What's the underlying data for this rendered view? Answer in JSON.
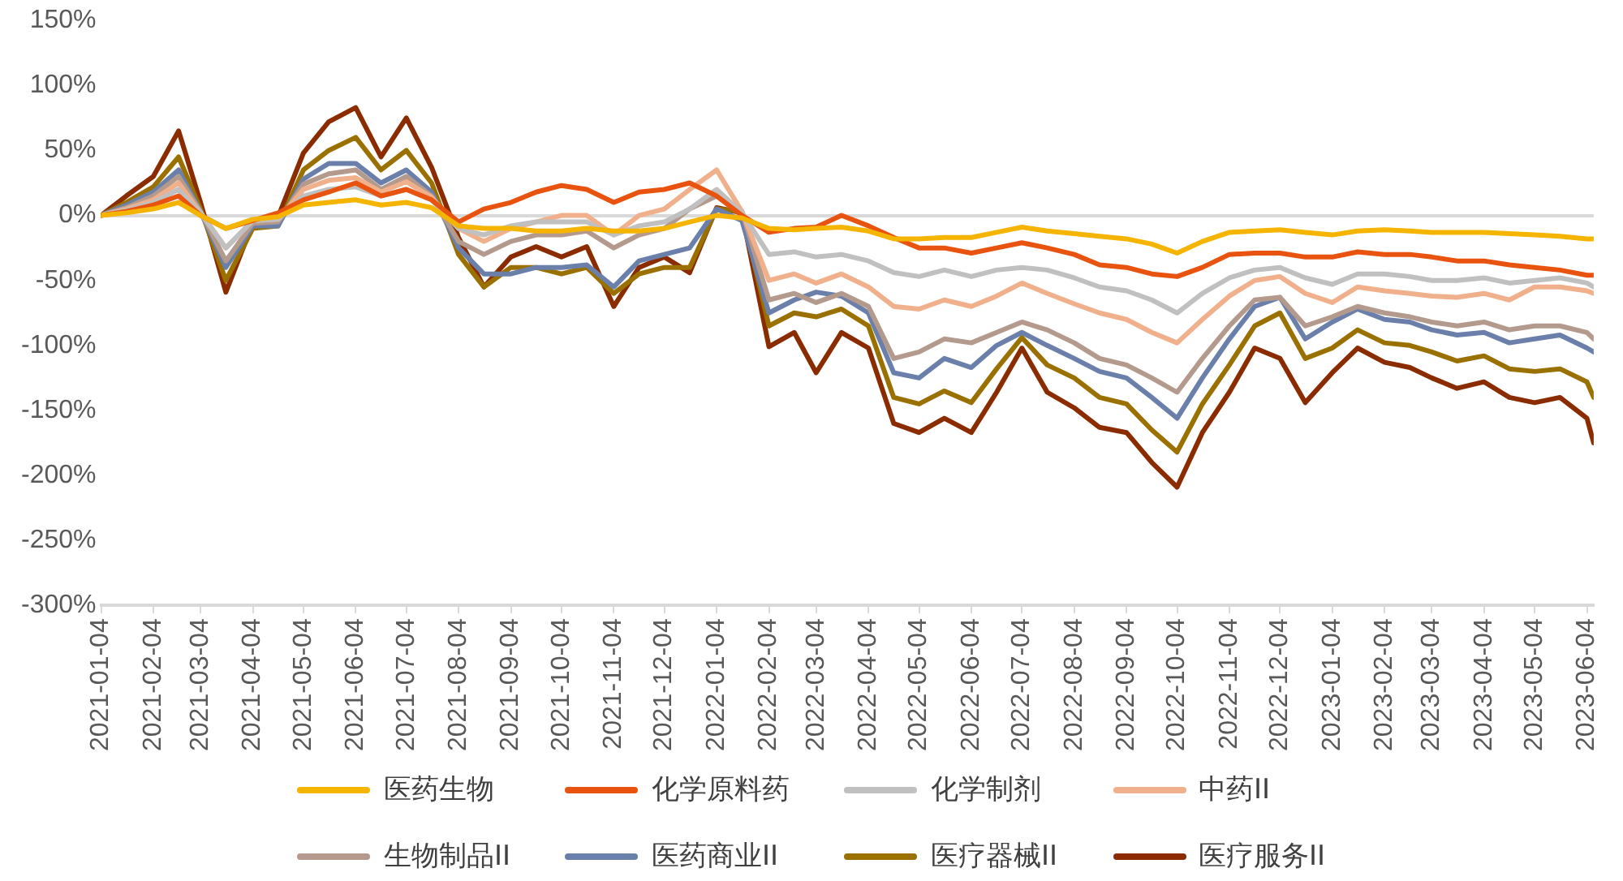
{
  "chart_data": {
    "type": "line",
    "x": [
      "2021-01-04",
      "2021-01-19",
      "2021-02-04",
      "2021-02-19",
      "2021-03-04",
      "2021-03-19",
      "2021-04-04",
      "2021-04-19",
      "2021-05-04",
      "2021-05-19",
      "2021-06-04",
      "2021-06-19",
      "2021-07-04",
      "2021-07-19",
      "2021-08-04",
      "2021-08-19",
      "2021-09-04",
      "2021-09-19",
      "2021-10-04",
      "2021-10-19",
      "2021-11-04",
      "2021-11-19",
      "2021-12-04",
      "2021-12-19",
      "2022-01-04",
      "2022-01-19",
      "2022-02-04",
      "2022-02-19",
      "2022-03-04",
      "2022-03-19",
      "2022-04-04",
      "2022-04-19",
      "2022-05-04",
      "2022-05-19",
      "2022-06-04",
      "2022-06-19",
      "2022-07-04",
      "2022-07-19",
      "2022-08-04",
      "2022-08-19",
      "2022-09-04",
      "2022-09-19",
      "2022-10-04",
      "2022-10-19",
      "2022-11-04",
      "2022-11-19",
      "2022-12-04",
      "2022-12-19",
      "2023-01-04",
      "2023-01-19",
      "2023-02-04",
      "2023-02-19",
      "2023-03-04",
      "2023-03-19",
      "2023-04-04",
      "2023-04-19",
      "2023-05-04",
      "2023-05-19",
      "2023-06-04",
      "2023-06-08"
    ],
    "series": [
      {
        "name": "医药生物",
        "color": "#f5b400",
        "values": [
          0,
          2,
          5,
          10,
          0,
          -10,
          -3,
          -1,
          8,
          10,
          12,
          8,
          10,
          6,
          -8,
          -10,
          -10,
          -12,
          -12,
          -10,
          -12,
          -12,
          -10,
          -5,
          0,
          -2,
          -10,
          -11,
          -10,
          -9,
          -12,
          -18,
          -18,
          -17,
          -17,
          -13,
          -9,
          -12,
          -14,
          -16,
          -18,
          -22,
          -29,
          -20,
          -13,
          -12,
          -11,
          -13,
          -15,
          -12,
          -11,
          -12,
          -13,
          -13,
          -13,
          -14,
          -15,
          -16,
          -18,
          -18
        ]
      },
      {
        "name": "化学原料药",
        "color": "#e8540f",
        "values": [
          0,
          3,
          8,
          15,
          0,
          -10,
          -4,
          2,
          12,
          18,
          25,
          15,
          20,
          12,
          -5,
          5,
          10,
          18,
          23,
          20,
          10,
          18,
          20,
          25,
          15,
          0,
          -13,
          -10,
          -9,
          0,
          -8,
          -17,
          -25,
          -25,
          -29,
          -25,
          -21,
          -25,
          -30,
          -38,
          -40,
          -45,
          -47,
          -40,
          -30,
          -29,
          -29,
          -32,
          -32,
          -28,
          -30,
          -30,
          -32,
          -35,
          -35,
          -38,
          -40,
          -42,
          -46,
          -46
        ]
      },
      {
        "name": "化学制剂",
        "color": "#c0c0c0",
        "values": [
          0,
          4,
          10,
          20,
          2,
          -25,
          -4,
          -3,
          15,
          20,
          22,
          15,
          20,
          12,
          -10,
          -15,
          -8,
          -5,
          -5,
          -5,
          -15,
          -8,
          -5,
          5,
          20,
          2,
          -30,
          -28,
          -32,
          -30,
          -35,
          -44,
          -47,
          -42,
          -47,
          -42,
          -40,
          -42,
          -48,
          -55,
          -58,
          -65,
          -75,
          -60,
          -48,
          -42,
          -40,
          -48,
          -53,
          -45,
          -45,
          -47,
          -50,
          -50,
          -48,
          -52,
          -50,
          -48,
          -52,
          -55
        ]
      },
      {
        "name": "中药II",
        "color": "#f0b08c",
        "values": [
          0,
          5,
          12,
          25,
          2,
          -25,
          -4,
          -3,
          20,
          27,
          29,
          18,
          26,
          14,
          -10,
          -20,
          -10,
          -5,
          0,
          0,
          -15,
          0,
          5,
          20,
          35,
          3,
          -50,
          -45,
          -52,
          -45,
          -55,
          -70,
          -72,
          -65,
          -70,
          -62,
          -52,
          -60,
          -68,
          -75,
          -80,
          -90,
          -98,
          -80,
          -62,
          -50,
          -47,
          -60,
          -67,
          -55,
          -58,
          -60,
          -62,
          -63,
          -60,
          -65,
          -55,
          -55,
          -58,
          -60
        ]
      },
      {
        "name": "生物制品II",
        "color": "#b49a8c",
        "values": [
          0,
          6,
          15,
          30,
          3,
          -35,
          -6,
          -5,
          24,
          32,
          35,
          20,
          30,
          15,
          -20,
          -30,
          -20,
          -15,
          -15,
          -12,
          -25,
          -15,
          -10,
          5,
          15,
          3,
          -65,
          -60,
          -67,
          -60,
          -70,
          -110,
          -105,
          -95,
          -98,
          -90,
          -82,
          -88,
          -98,
          -110,
          -115,
          -125,
          -136,
          -110,
          -85,
          -65,
          -63,
          -85,
          -78,
          -70,
          -75,
          -78,
          -82,
          -85,
          -82,
          -88,
          -85,
          -85,
          -90,
          -95
        ]
      },
      {
        "name": "医药商业II",
        "color": "#6a80aa",
        "values": [
          0,
          8,
          18,
          35,
          3,
          -40,
          -8,
          -8,
          28,
          40,
          40,
          25,
          35,
          18,
          -25,
          -45,
          -45,
          -40,
          -40,
          -38,
          -55,
          -35,
          -30,
          -25,
          5,
          -4,
          -75,
          -65,
          -59,
          -62,
          -75,
          -121,
          -125,
          -110,
          -117,
          -100,
          -90,
          -100,
          -110,
          -120,
          -125,
          -140,
          -156,
          -125,
          -95,
          -70,
          -63,
          -95,
          -82,
          -72,
          -80,
          -82,
          -88,
          -92,
          -90,
          -98,
          -95,
          -92,
          -102,
          -105
        ]
      },
      {
        "name": "医疗器械II",
        "color": "#9a7000",
        "values": [
          0,
          10,
          22,
          45,
          5,
          -50,
          -10,
          -8,
          35,
          50,
          60,
          35,
          50,
          25,
          -30,
          -55,
          -40,
          -40,
          -45,
          -40,
          -60,
          -45,
          -40,
          -40,
          5,
          3,
          -85,
          -75,
          -78,
          -72,
          -85,
          -140,
          -145,
          -135,
          -144,
          -118,
          -94,
          -115,
          -125,
          -140,
          -145,
          -165,
          -182,
          -145,
          -115,
          -85,
          -75,
          -110,
          -102,
          -88,
          -98,
          -100,
          -105,
          -112,
          -108,
          -118,
          -120,
          -118,
          -128,
          -140
        ]
      },
      {
        "name": "医疗服务II",
        "color": "#8b2c00",
        "values": [
          0,
          15,
          30,
          65,
          10,
          -59,
          -6,
          -1,
          48,
          72,
          83,
          45,
          75,
          37,
          -17,
          -55,
          -32,
          -24,
          -32,
          -24,
          -70,
          -40,
          -32,
          -44,
          6,
          2,
          -101,
          -90,
          -121,
          -90,
          -102,
          -160,
          -167,
          -156,
          -167,
          -136,
          -102,
          -136,
          -148,
          -163,
          -167,
          -190,
          -209,
          -167,
          -136,
          -102,
          -110,
          -144,
          -121,
          -102,
          -113,
          -117,
          -125,
          -133,
          -128,
          -140,
          -144,
          -140,
          -156,
          -175
        ]
      }
    ],
    "xlim": [
      "2021-01-04",
      "2023-06-08"
    ],
    "xticks": [
      "2021-01-04",
      "2021-02-04",
      "2021-03-04",
      "2021-04-04",
      "2021-05-04",
      "2021-06-04",
      "2021-07-04",
      "2021-08-04",
      "2021-09-04",
      "2021-10-04",
      "2021-11-04",
      "2021-12-04",
      "2022-01-04",
      "2022-02-04",
      "2022-03-04",
      "2022-04-04",
      "2022-05-04",
      "2022-06-04",
      "2022-07-04",
      "2022-08-04",
      "2022-09-04",
      "2022-10-04",
      "2022-11-04",
      "2022-12-04",
      "2023-01-04",
      "2023-02-04",
      "2023-03-04",
      "2023-04-04",
      "2023-05-04",
      "2023-06-04"
    ],
    "ylim": [
      -300,
      150
    ],
    "yticks": [
      {
        "value": -300,
        "label": "-300%"
      },
      {
        "value": -250,
        "label": "-250%"
      },
      {
        "value": -200,
        "label": "-200%"
      },
      {
        "value": -150,
        "label": "-150%"
      },
      {
        "value": -100,
        "label": "-100%"
      },
      {
        "value": -50,
        "label": "-50%"
      },
      {
        "value": 0,
        "label": "0%"
      },
      {
        "value": 50,
        "label": "50%"
      },
      {
        "value": 100,
        "label": "100%"
      },
      {
        "value": 150,
        "label": "150%"
      }
    ],
    "legend": "bottom",
    "marker": "none",
    "line_style": "solid"
  }
}
